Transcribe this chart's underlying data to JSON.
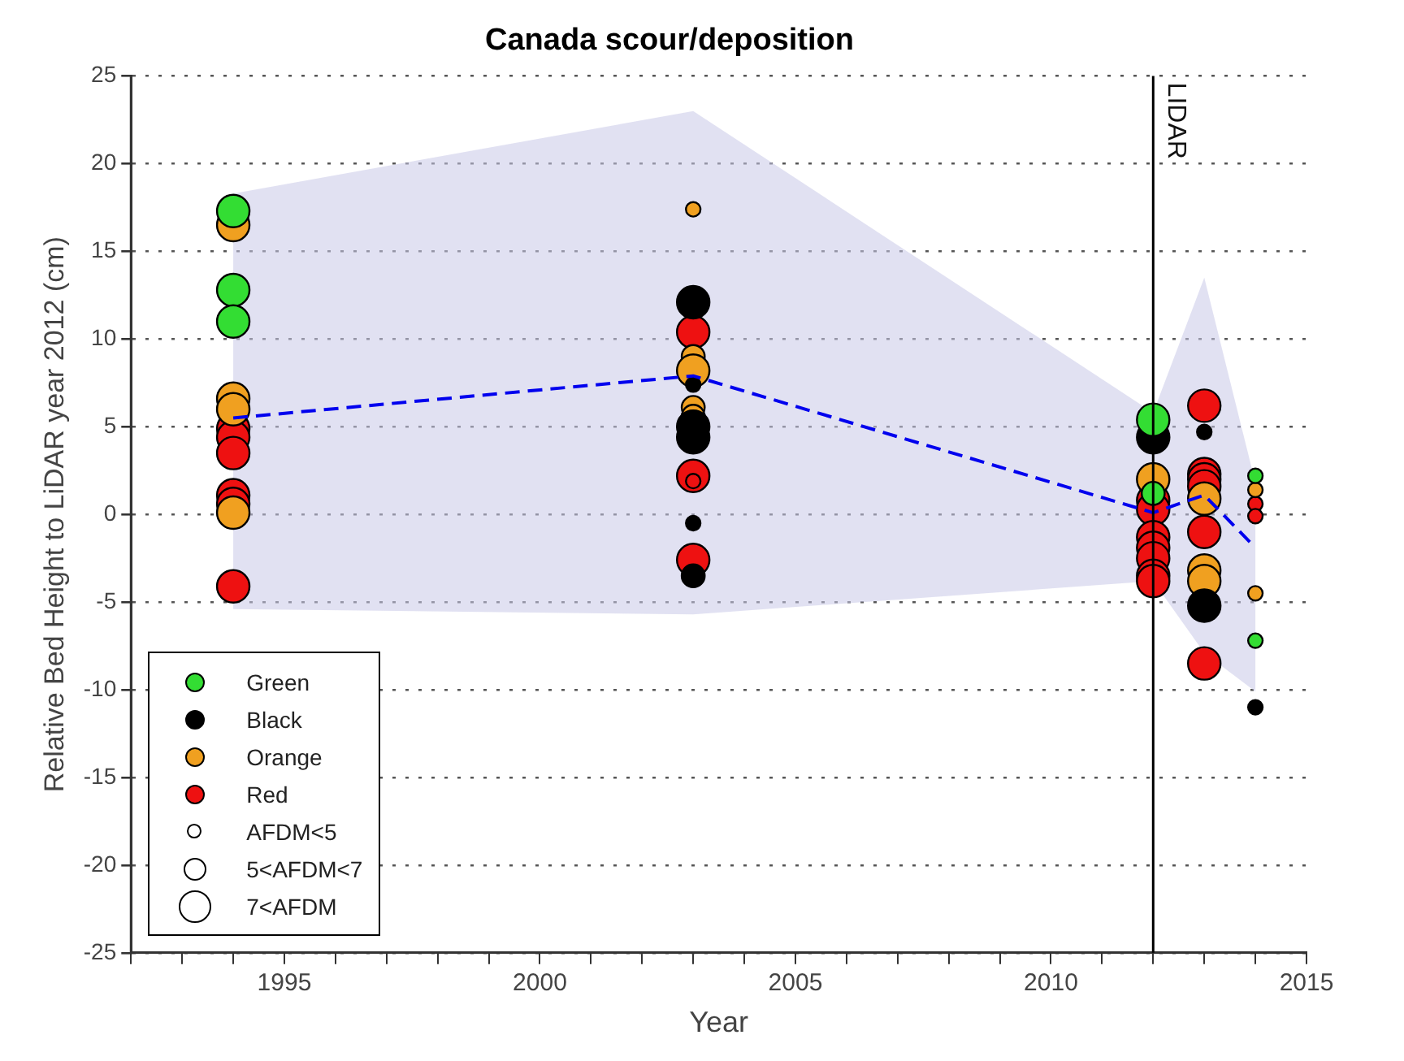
{
  "chart_data": {
    "type": "bubble",
    "title": "Canada scour/deposition",
    "xlabel": "Year",
    "ylabel": "Relative Bed Height to LiDAR year 2012 (cm)",
    "xlim": [
      1992,
      2015
    ],
    "xticks": [
      {
        "value": 1992,
        "label": null
      },
      {
        "value": 1993,
        "label": null
      },
      {
        "value": 1994,
        "label": null
      },
      1995,
      {
        "value": 1996,
        "label": null
      },
      {
        "value": 1997,
        "label": null
      },
      {
        "value": 1998,
        "label": null
      },
      {
        "value": 1999,
        "label": null
      },
      2000,
      {
        "value": 2001,
        "label": null
      },
      {
        "value": 2002,
        "label": null
      },
      {
        "value": 2003,
        "label": null
      },
      {
        "value": 2004,
        "label": null
      },
      2005,
      {
        "value": 2006,
        "label": null
      },
      {
        "value": 2007,
        "label": null
      },
      {
        "value": 2008,
        "label": null
      },
      {
        "value": 2009,
        "label": null
      },
      2010,
      {
        "value": 2011,
        "label": null
      },
      {
        "value": 2012,
        "label": null
      },
      {
        "value": 2013,
        "label": null
      },
      {
        "value": 2014,
        "label": null
      },
      2015
    ],
    "ylim": [
      -25,
      25
    ],
    "yticks": [
      -25,
      -20,
      -15,
      -10,
      -5,
      0,
      5,
      10,
      15,
      20,
      25
    ],
    "grid": "y",
    "legend": "bottom left",
    "size_legend": [
      {
        "value": 0.2,
        "label": "AFDM<5"
      },
      {
        "value": 0.5,
        "label": "5<AFDM<7"
      },
      {
        "value": 1,
        "label": "7<AFDM"
      }
    ],
    "ref_lines": [
      {
        "axis": "x",
        "value": 2012,
        "label": "LIDAR",
        "color": "#000000"
      }
    ],
    "series": [
      {
        "name": "Green",
        "color": "#33dd33",
        "x": [
          1994,
          1994,
          1994,
          2012,
          2012,
          2014,
          2014
        ],
        "values": [
          17.3,
          12.8,
          11.0,
          5.4,
          1.2,
          2.2,
          -7.2
        ],
        "sizes": [
          1,
          1,
          1,
          1,
          0.5,
          0.2,
          0.2
        ]
      },
      {
        "name": "Black",
        "color": "#000000",
        "x": [
          2003,
          2003,
          2003,
          2003,
          2003,
          2003,
          2012,
          2013,
          2013,
          2014
        ],
        "values": [
          12.1,
          7.4,
          5.0,
          4.4,
          -0.5,
          -3.5,
          4.4,
          4.7,
          -5.2,
          -11.0
        ],
        "sizes": [
          1,
          0.2,
          1,
          1,
          0.2,
          0.5,
          1,
          0.2,
          1,
          0.2
        ]
      },
      {
        "name": "Orange",
        "color": "#f0a020",
        "x": [
          1994,
          1994,
          1994,
          1994,
          2003,
          2003,
          2003,
          2003,
          2003,
          2012,
          2013,
          2013,
          2013,
          2014,
          2014
        ],
        "values": [
          16.5,
          6.6,
          6.0,
          0.1,
          17.4,
          9.0,
          8.2,
          6.1,
          5.6,
          2.0,
          0.9,
          -3.2,
          -3.8,
          1.4,
          -4.5
        ],
        "sizes": [
          1,
          1,
          1,
          1,
          0.2,
          0.5,
          1,
          0.5,
          0.5,
          1,
          1,
          1,
          1,
          0.2,
          0.2
        ]
      },
      {
        "name": "Red",
        "color": "#ee1111",
        "x": [
          1994,
          1994,
          1994,
          1994,
          1994,
          1994,
          2003,
          2003,
          2003,
          2003,
          2012,
          2012,
          2012,
          2012,
          2012,
          2012,
          2012,
          2013,
          2013,
          2013,
          2013,
          2013,
          2013,
          2014,
          2014
        ],
        "values": [
          4.9,
          4.4,
          3.5,
          1.1,
          0.6,
          -4.1,
          10.4,
          2.2,
          1.9,
          -2.6,
          0.8,
          0.3,
          -1.3,
          -1.9,
          -2.5,
          -3.5,
          -3.8,
          6.2,
          2.3,
          2.0,
          1.6,
          -1.0,
          -8.5,
          0.6,
          -0.1
        ],
        "sizes": [
          1,
          1,
          1,
          1,
          1,
          1,
          1,
          1,
          0.2,
          1,
          1,
          1,
          1,
          1,
          1,
          1,
          1,
          1,
          1,
          1,
          1,
          1,
          1,
          0.2,
          0.2
        ]
      },
      {
        "type": "line",
        "color": "#0000ee",
        "line_style": "dashed",
        "marker": "none",
        "x": [
          1994,
          2003,
          2012,
          2013,
          2014
        ],
        "values": [
          5.5,
          7.9,
          0.1,
          1.1,
          -1.9
        ],
        "lower": [
          -5.4,
          -5.7,
          -3.8,
          -7.9,
          -10.1
        ],
        "upper": [
          18.3,
          23.0,
          5.8,
          13.5,
          1.8
        ]
      }
    ]
  }
}
